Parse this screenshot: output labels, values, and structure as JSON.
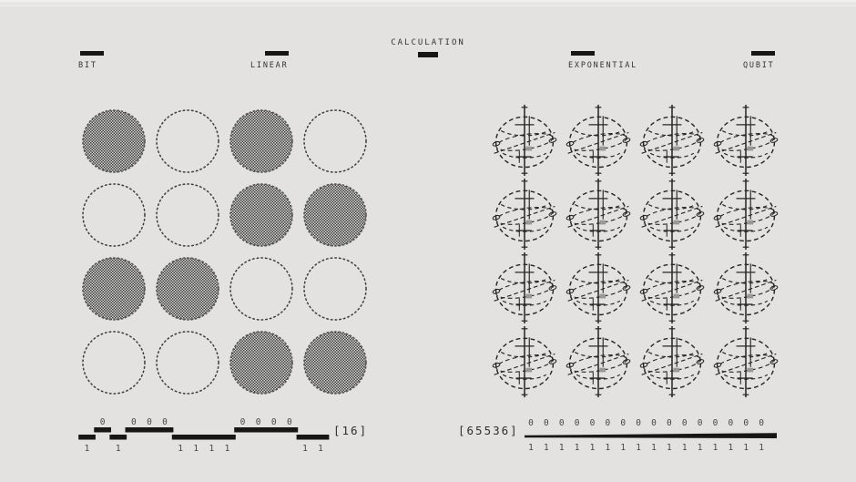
{
  "header": {
    "title": "CALCULATION"
  },
  "labels": {
    "bit": "BIT",
    "linear": "LINEAR",
    "exponential": "EXPONENTIAL",
    "qubit": "QUBIT"
  },
  "bit_panel": {
    "rows": 4,
    "cols": 4,
    "cells": [
      1,
      0,
      1,
      0,
      0,
      0,
      1,
      1,
      1,
      1,
      0,
      0,
      0,
      0,
      1,
      1
    ]
  },
  "qubit_panel": {
    "rows": 4,
    "cols": 4,
    "count": 16
  },
  "bit_readout": {
    "bits": "1010001111000011",
    "count_label": "[16]"
  },
  "qubit_readout": {
    "count_label": "[65536]",
    "top_digits": "0000000000000000",
    "bottom_digits": "1111111111111111"
  },
  "colors": {
    "background": "#e3e2e0",
    "ink": "#161616",
    "sketch": "#2b2b2b",
    "dither_dark": "#3e3e3e",
    "dither_light": "#d7d6d4"
  }
}
